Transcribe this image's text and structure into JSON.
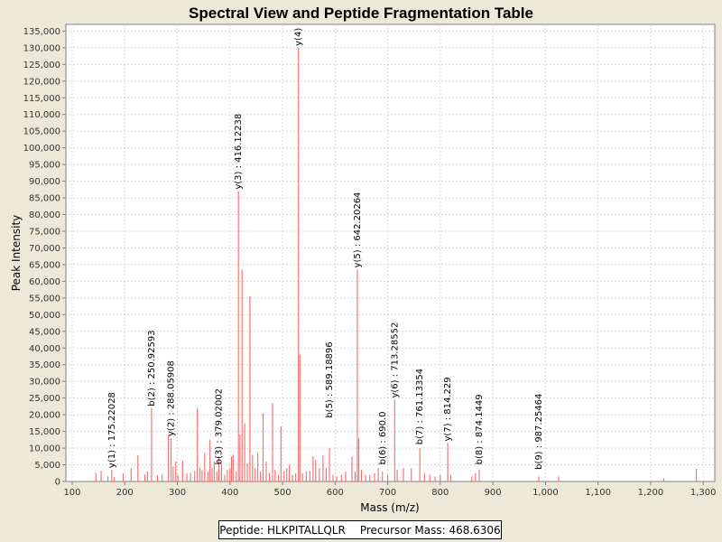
{
  "chart_data": {
    "type": "bar",
    "title": "Spectral View and Peptide Fragmentation Table",
    "xlabel": "Mass (m/z)",
    "ylabel": "Peak Intensity",
    "xlim": [
      88,
      1322
    ],
    "ylim": [
      0,
      137000
    ],
    "x_ticks": [
      100,
      200,
      300,
      400,
      500,
      600,
      700,
      800,
      900,
      1000,
      1100,
      1200,
      1300
    ],
    "x_tick_labels": [
      "100",
      "200",
      "300",
      "400",
      "500",
      "600",
      "700",
      "800",
      "900",
      "1,000",
      "1,100",
      "1,200",
      "1,300"
    ],
    "y_ticks": [
      0,
      5000,
      10000,
      15000,
      20000,
      25000,
      30000,
      35000,
      40000,
      45000,
      50000,
      55000,
      60000,
      65000,
      70000,
      75000,
      80000,
      85000,
      90000,
      95000,
      100000,
      105000,
      110000,
      115000,
      120000,
      125000,
      130000,
      135000
    ],
    "y_tick_labels": [
      "0",
      "5,000",
      "10,000",
      "15,000",
      "20,000",
      "25,000",
      "30,000",
      "35,000",
      "40,000",
      "45,000",
      "50,000",
      "55,000",
      "60,000",
      "65,000",
      "70,000",
      "75,000",
      "80,000",
      "85,000",
      "90,000",
      "95,000",
      "100,000",
      "105,000",
      "110,000",
      "115,000",
      "120,000",
      "125,000",
      "130,000",
      "135,000"
    ],
    "grid": true,
    "color": "#ff6666",
    "peaks": [
      {
        "mz": 145,
        "intensity": 2600
      },
      {
        "mz": 155,
        "intensity": 3200
      },
      {
        "mz": 168,
        "intensity": 1600
      },
      {
        "mz": 175.2,
        "intensity": 3500
      },
      {
        "mz": 180,
        "intensity": 1300
      },
      {
        "mz": 197,
        "intensity": 2400
      },
      {
        "mz": 212,
        "intensity": 4000
      },
      {
        "mz": 225,
        "intensity": 7800
      },
      {
        "mz": 238,
        "intensity": 2100
      },
      {
        "mz": 243,
        "intensity": 3000
      },
      {
        "mz": 250.9,
        "intensity": 22000
      },
      {
        "mz": 262,
        "intensity": 1800
      },
      {
        "mz": 271,
        "intensity": 2000
      },
      {
        "mz": 283,
        "intensity": 14000
      },
      {
        "mz": 288.1,
        "intensity": 13000
      },
      {
        "mz": 292,
        "intensity": 4500
      },
      {
        "mz": 297,
        "intensity": 6000
      },
      {
        "mz": 301,
        "intensity": 2000
      },
      {
        "mz": 310,
        "intensity": 6200
      },
      {
        "mz": 318,
        "intensity": 2500
      },
      {
        "mz": 325,
        "intensity": 2600
      },
      {
        "mz": 333,
        "intensity": 3200
      },
      {
        "mz": 338,
        "intensity": 21800
      },
      {
        "mz": 343,
        "intensity": 4200
      },
      {
        "mz": 347,
        "intensity": 3400
      },
      {
        "mz": 352,
        "intensity": 8500
      },
      {
        "mz": 358,
        "intensity": 3000
      },
      {
        "mz": 362,
        "intensity": 12500
      },
      {
        "mz": 366,
        "intensity": 4000
      },
      {
        "mz": 370,
        "intensity": 6000
      },
      {
        "mz": 375,
        "intensity": 3000
      },
      {
        "mz": 379,
        "intensity": 7500
      },
      {
        "mz": 384,
        "intensity": 5000
      },
      {
        "mz": 390,
        "intensity": 2000
      },
      {
        "mz": 395,
        "intensity": 3500
      },
      {
        "mz": 400,
        "intensity": 4000
      },
      {
        "mz": 403,
        "intensity": 7500
      },
      {
        "mz": 406,
        "intensity": 8000
      },
      {
        "mz": 412,
        "intensity": 3000
      },
      {
        "mz": 416.1,
        "intensity": 87000
      },
      {
        "mz": 419,
        "intensity": 14000
      },
      {
        "mz": 423,
        "intensity": 63500
      },
      {
        "mz": 428,
        "intensity": 17500
      },
      {
        "mz": 433,
        "intensity": 5500
      },
      {
        "mz": 438,
        "intensity": 55500
      },
      {
        "mz": 443,
        "intensity": 8000
      },
      {
        "mz": 448,
        "intensity": 4000
      },
      {
        "mz": 453,
        "intensity": 8500
      },
      {
        "mz": 458,
        "intensity": 3000
      },
      {
        "mz": 463,
        "intensity": 20500
      },
      {
        "mz": 469,
        "intensity": 6000
      },
      {
        "mz": 475,
        "intensity": 2600
      },
      {
        "mz": 481,
        "intensity": 23500
      },
      {
        "mz": 486,
        "intensity": 3500
      },
      {
        "mz": 492,
        "intensity": 2000
      },
      {
        "mz": 497,
        "intensity": 16500
      },
      {
        "mz": 503,
        "intensity": 3200
      },
      {
        "mz": 508,
        "intensity": 4000
      },
      {
        "mz": 513,
        "intensity": 5000
      },
      {
        "mz": 519,
        "intensity": 2000
      },
      {
        "mz": 525,
        "intensity": 2500
      },
      {
        "mz": 530.3,
        "intensity": 130000
      },
      {
        "mz": 533,
        "intensity": 38000
      },
      {
        "mz": 538,
        "intensity": 2500
      },
      {
        "mz": 545,
        "intensity": 3000
      },
      {
        "mz": 552,
        "intensity": 3200
      },
      {
        "mz": 558,
        "intensity": 7500
      },
      {
        "mz": 563,
        "intensity": 6500
      },
      {
        "mz": 570,
        "intensity": 4000
      },
      {
        "mz": 577,
        "intensity": 7800
      },
      {
        "mz": 583,
        "intensity": 4000
      },
      {
        "mz": 589.2,
        "intensity": 10000
      },
      {
        "mz": 596,
        "intensity": 2000
      },
      {
        "mz": 603,
        "intensity": 1500
      },
      {
        "mz": 612,
        "intensity": 2000
      },
      {
        "mz": 620,
        "intensity": 3000
      },
      {
        "mz": 632,
        "intensity": 7500
      },
      {
        "mz": 638,
        "intensity": 3000
      },
      {
        "mz": 642.2,
        "intensity": 63500
      },
      {
        "mz": 645,
        "intensity": 13000
      },
      {
        "mz": 650,
        "intensity": 3500
      },
      {
        "mz": 658,
        "intensity": 2000
      },
      {
        "mz": 666,
        "intensity": 2000
      },
      {
        "mz": 675,
        "intensity": 2500
      },
      {
        "mz": 682,
        "intensity": 4000
      },
      {
        "mz": 690,
        "intensity": 3000
      },
      {
        "mz": 700,
        "intensity": 2000
      },
      {
        "mz": 713.3,
        "intensity": 24500
      },
      {
        "mz": 718,
        "intensity": 3500
      },
      {
        "mz": 730,
        "intensity": 4000
      },
      {
        "mz": 745,
        "intensity": 4000
      },
      {
        "mz": 761.1,
        "intensity": 10000
      },
      {
        "mz": 770,
        "intensity": 2500
      },
      {
        "mz": 780,
        "intensity": 2000
      },
      {
        "mz": 790,
        "intensity": 1500
      },
      {
        "mz": 800,
        "intensity": 2000
      },
      {
        "mz": 814.2,
        "intensity": 11500
      },
      {
        "mz": 820,
        "intensity": 2000
      },
      {
        "mz": 860,
        "intensity": 1500
      },
      {
        "mz": 867,
        "intensity": 2500
      },
      {
        "mz": 874.1,
        "intensity": 3500
      },
      {
        "mz": 987.3,
        "intensity": 1500
      },
      {
        "mz": 1025,
        "intensity": 1500
      },
      {
        "mz": 1225,
        "intensity": 1000
      },
      {
        "mz": 1287,
        "intensity": 3800
      }
    ],
    "annotations": [
      {
        "label": "y(1) : 175.22028",
        "mz": 175.22028,
        "intensity": 3500
      },
      {
        "label": "b(2) : 250.92593",
        "mz": 250.92593,
        "intensity": 22000
      },
      {
        "label": "y(2) : 288.05908",
        "mz": 288.05908,
        "intensity": 13000
      },
      {
        "label": "b(3) : 379.02002",
        "mz": 379.02002,
        "intensity": 4500
      },
      {
        "label": "y(3) : 416.12238",
        "mz": 416.12238,
        "intensity": 87000
      },
      {
        "label": "y(4)",
        "mz": 530.3,
        "intensity": 130000
      },
      {
        "label": "b(5) : 589.18896",
        "mz": 589.18896,
        "intensity": 18500
      },
      {
        "label": "y(5) : 642.20264",
        "mz": 642.20264,
        "intensity": 63500
      },
      {
        "label": "b(6) : 690.0",
        "mz": 690.0,
        "intensity": 4500
      },
      {
        "label": "y(6) : 713.28552",
        "mz": 713.28552,
        "intensity": 24500
      },
      {
        "label": "b(7) : 761.13354",
        "mz": 761.13354,
        "intensity": 10500
      },
      {
        "label": "y(7) : 814.229",
        "mz": 814.229,
        "intensity": 11500
      },
      {
        "label": "b(8) : 874.1449",
        "mz": 874.1449,
        "intensity": 4500
      },
      {
        "label": "b(9) : 987.25464",
        "mz": 987.25464,
        "intensity": 3000
      }
    ]
  },
  "legend": {
    "peptide": "Peptide: HLKPITALLQLR",
    "precursor": "Precursor Mass: 468.6306"
  }
}
